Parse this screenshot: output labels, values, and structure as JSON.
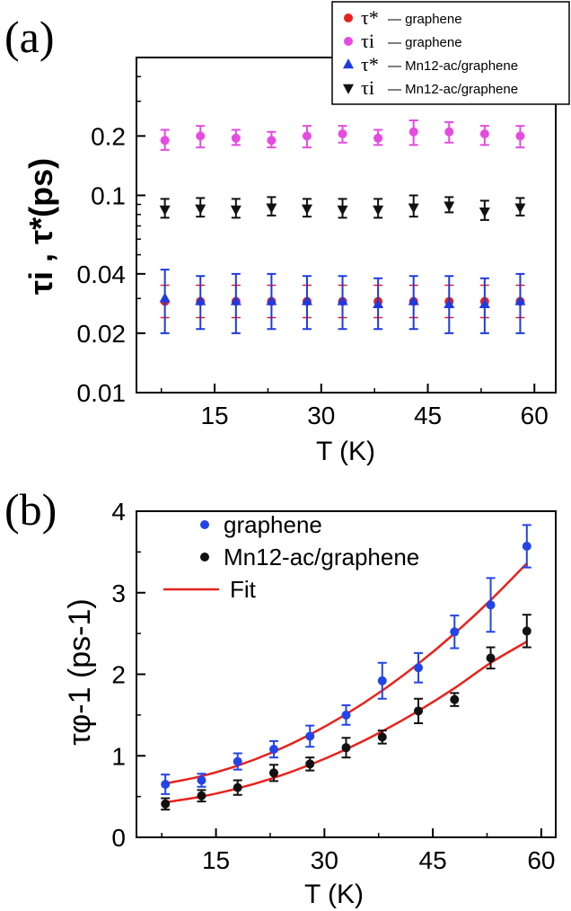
{
  "colors": {
    "tau_star_graphene": "#e8221b",
    "tau_i_graphene": "#e64be0",
    "tau_star_mn12": "#1f3be0",
    "tau_i_mn12": "#111111",
    "phi_graphene": "#2344e8",
    "phi_mn12": "#111111",
    "fit": "#e8221b"
  },
  "chart_data": [
    {
      "panel_label": "(a)",
      "type": "scatter",
      "xlabel": "T (K)",
      "ylabel": "τi , τ*(ps)",
      "yscale": "log",
      "xlim": [
        4,
        63
      ],
      "ylim": [
        0.01,
        0.5
      ],
      "xticks": [
        15,
        30,
        45,
        60
      ],
      "xtick_labels": [
        "15",
        "30",
        "45",
        "60"
      ],
      "yticks": [
        0.01,
        0.02,
        0.04,
        0.1,
        0.2
      ],
      "ytick_labels": [
        "0.01",
        "0.02",
        "0.04",
        "0.1",
        "0.2"
      ],
      "grid": false,
      "legend_position": "top-right, outside plot",
      "x": [
        8,
        13,
        18,
        23,
        28,
        33,
        38,
        43,
        48,
        53,
        58
      ],
      "series": [
        {
          "name": "τ*— graphene",
          "legend_symbol": "τ*",
          "legend_suffix": "— graphene",
          "marker": "circle",
          "color_key": "tau_star_graphene",
          "values": [
            0.029,
            0.029,
            0.029,
            0.029,
            0.029,
            0.029,
            0.029,
            0.029,
            0.029,
            0.029,
            0.029
          ],
          "err_low": [
            0.024,
            0.024,
            0.024,
            0.024,
            0.024,
            0.024,
            0.024,
            0.024,
            0.024,
            0.024,
            0.024
          ],
          "err_high": [
            0.035,
            0.035,
            0.035,
            0.035,
            0.035,
            0.035,
            0.035,
            0.035,
            0.035,
            0.035,
            0.035
          ]
        },
        {
          "name": "τi— graphene",
          "legend_symbol": "τi",
          "legend_suffix": "— graphene",
          "marker": "circle",
          "color_key": "tau_i_graphene",
          "values": [
            0.19,
            0.2,
            0.195,
            0.19,
            0.2,
            0.205,
            0.195,
            0.21,
            0.21,
            0.205,
            0.2
          ],
          "err_low": [
            0.17,
            0.175,
            0.18,
            0.175,
            0.175,
            0.185,
            0.18,
            0.18,
            0.185,
            0.18,
            0.175
          ],
          "err_high": [
            0.215,
            0.225,
            0.215,
            0.21,
            0.225,
            0.225,
            0.215,
            0.24,
            0.235,
            0.225,
            0.225
          ]
        },
        {
          "name": "τ*— Mn12-ac/graphene",
          "legend_symbol": "τ*",
          "legend_suffix": "— Mn12-ac/graphene",
          "marker": "triangle-up",
          "color_key": "tau_star_mn12",
          "values": [
            0.03,
            0.029,
            0.029,
            0.029,
            0.029,
            0.029,
            0.028,
            0.029,
            0.028,
            0.028,
            0.029
          ],
          "err_low": [
            0.02,
            0.021,
            0.02,
            0.021,
            0.021,
            0.021,
            0.021,
            0.021,
            0.02,
            0.02,
            0.02
          ],
          "err_high": [
            0.042,
            0.039,
            0.04,
            0.04,
            0.039,
            0.039,
            0.038,
            0.039,
            0.039,
            0.038,
            0.04
          ]
        },
        {
          "name": "τi— Mn12-ac/graphene",
          "legend_symbol": "τi",
          "legend_suffix": "— Mn12-ac/graphene",
          "marker": "triangle-down",
          "color_key": "tau_i_mn12",
          "values": [
            0.085,
            0.086,
            0.085,
            0.087,
            0.086,
            0.085,
            0.085,
            0.087,
            0.089,
            0.083,
            0.087
          ],
          "err_low": [
            0.077,
            0.078,
            0.077,
            0.079,
            0.078,
            0.077,
            0.077,
            0.078,
            0.082,
            0.075,
            0.079
          ],
          "err_high": [
            0.096,
            0.097,
            0.096,
            0.098,
            0.096,
            0.096,
            0.096,
            0.1,
            0.098,
            0.094,
            0.097
          ]
        }
      ]
    },
    {
      "panel_label": "(b)",
      "type": "scatter",
      "xlabel": "T (K)",
      "ylabel": "τφ-1 (ps-1)",
      "yscale": "linear",
      "xlim": [
        4,
        62
      ],
      "ylim": [
        0,
        4
      ],
      "xticks": [
        15,
        30,
        45,
        60
      ],
      "xtick_labels": [
        "15",
        "30",
        "45",
        "60"
      ],
      "yticks": [
        0,
        1,
        2,
        3,
        4
      ],
      "ytick_labels": [
        "0",
        "1",
        "2",
        "3",
        "4"
      ],
      "grid": false,
      "legend_position": "top-left, inside plot",
      "x": [
        8,
        13,
        18,
        23,
        28,
        33,
        38,
        43,
        48,
        53,
        58
      ],
      "series": [
        {
          "name": "graphene",
          "marker": "circle",
          "color_key": "phi_graphene",
          "values": [
            0.65,
            0.7,
            0.93,
            1.08,
            1.24,
            1.5,
            1.92,
            2.08,
            2.52,
            2.85,
            3.57
          ],
          "errors": [
            0.12,
            0.08,
            0.1,
            0.1,
            0.13,
            0.12,
            0.22,
            0.18,
            0.2,
            0.33,
            0.26
          ]
        },
        {
          "name": "Mn12-ac/graphene",
          "marker": "circle",
          "color_key": "phi_mn12",
          "values": [
            0.41,
            0.51,
            0.61,
            0.79,
            0.9,
            1.1,
            1.23,
            1.55,
            1.69,
            2.2,
            2.53
          ],
          "errors": [
            0.07,
            0.07,
            0.09,
            0.1,
            0.08,
            0.12,
            0.08,
            0.15,
            0.08,
            0.13,
            0.2
          ]
        }
      ],
      "fit_label": "Fit",
      "fits": [
        {
          "x": [
            8,
            13,
            18,
            23,
            28,
            33,
            38,
            43,
            48,
            53,
            58
          ],
          "values": [
            0.66,
            0.75,
            0.88,
            1.05,
            1.26,
            1.51,
            1.8,
            2.13,
            2.5,
            2.91,
            3.36
          ]
        },
        {
          "x": [
            8,
            13,
            18,
            23,
            28,
            33,
            38,
            43,
            48,
            53,
            58
          ],
          "values": [
            0.43,
            0.5,
            0.6,
            0.73,
            0.89,
            1.08,
            1.3,
            1.55,
            1.83,
            2.14,
            2.4
          ]
        }
      ]
    }
  ]
}
